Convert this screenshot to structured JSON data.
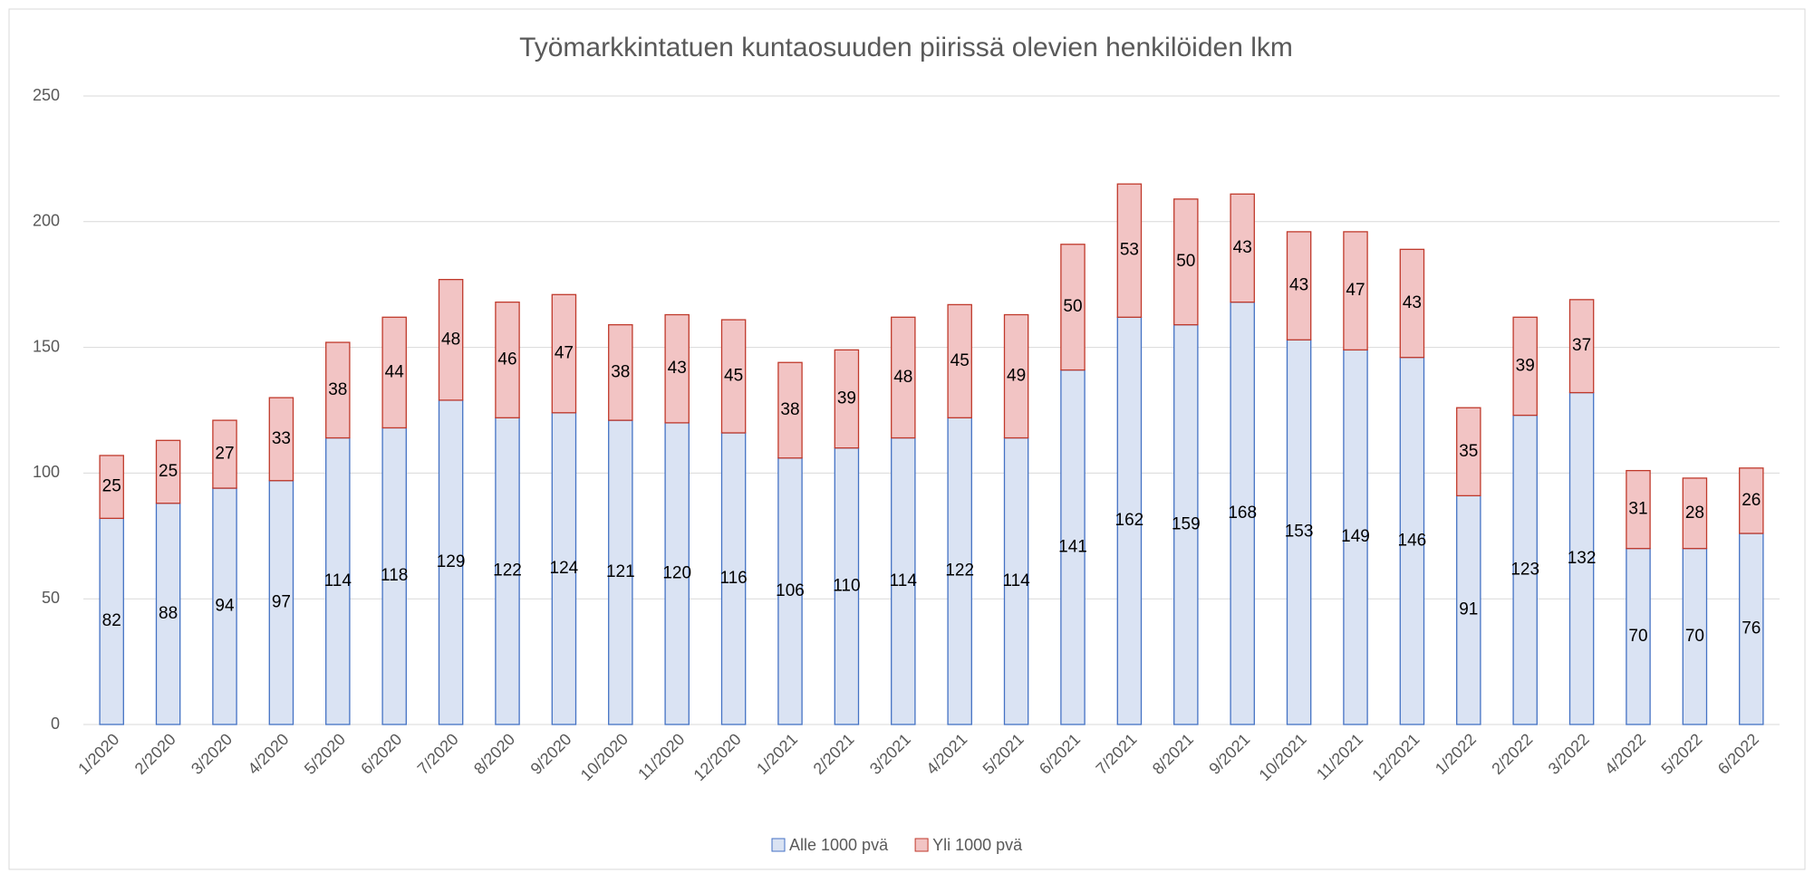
{
  "chart_data": {
    "type": "stacked_bar",
    "title": "Työmarkkintatuen kuntaosuuden piirissä olevien henkilöiden  lkm",
    "categories": [
      "1/2020",
      "2/2020",
      "3/2020",
      "4/2020",
      "5/2020",
      "6/2020",
      "7/2020",
      "8/2020",
      "9/2020",
      "10/2020",
      "11/2020",
      "12/2020",
      "1/2021",
      "2/2021",
      "3/2021",
      "4/2021",
      "5/2021",
      "6/2021",
      "7/2021",
      "8/2021",
      "9/2021",
      "10/2021",
      "11/2021",
      "12/2021",
      "1/2022",
      "2/2022",
      "3/2022",
      "4/2022",
      "5/2022",
      "6/2022"
    ],
    "series": [
      {
        "name": "Alle 1000 pvä",
        "color": "#dae3f3",
        "stroke": "#4472c4",
        "values": [
          82,
          88,
          94,
          97,
          114,
          118,
          129,
          122,
          124,
          121,
          120,
          116,
          106,
          110,
          114,
          122,
          114,
          141,
          162,
          159,
          168,
          153,
          149,
          146,
          91,
          123,
          132,
          70,
          70,
          76
        ]
      },
      {
        "name": "Yli 1000 pvä",
        "color": "#f2c4c4",
        "stroke": "#c0392b",
        "values": [
          25,
          25,
          27,
          33,
          38,
          44,
          48,
          46,
          47,
          38,
          43,
          45,
          38,
          39,
          48,
          45,
          49,
          50,
          53,
          50,
          43,
          43,
          47,
          43,
          35,
          39,
          37,
          31,
          28,
          26
        ]
      }
    ],
    "ylim": [
      0,
      250
    ],
    "yticks": [
      0,
      50,
      100,
      150,
      200,
      250
    ],
    "grid": true,
    "legend": "bottom"
  }
}
